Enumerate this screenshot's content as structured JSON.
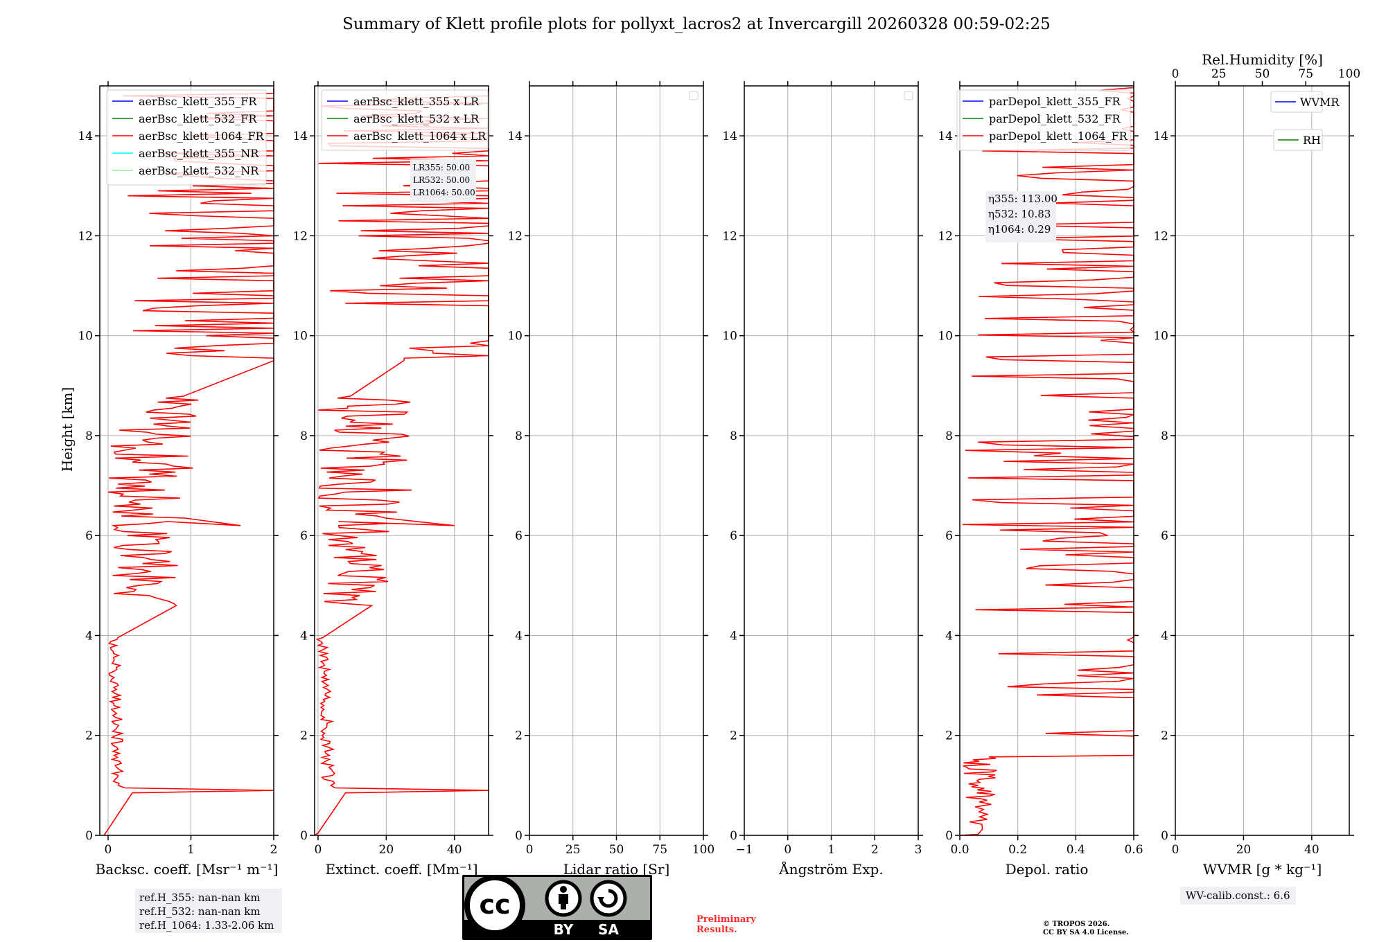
{
  "title": "Summary of Klett profile plots for pollyxt_lacros2 at Invercargill 20260328 00:59-02:25",
  "colors": {
    "c355": "#0000ff",
    "c532": "#008000",
    "c1064": "#ff0000",
    "c355nr": "#00ffff",
    "c532nr": "#90ee90",
    "grid": "#b0b0b0"
  },
  "chart_data": [
    {
      "type": "line",
      "name": "backscatter",
      "xlabel": "Backsc. coeff. [Msr⁻¹ m⁻¹]",
      "ylabel": "Height [km]",
      "xlim": [
        -0.1,
        2
      ],
      "ylim": [
        0,
        15
      ],
      "xticks": [
        0,
        1,
        2
      ],
      "yticks": [
        0,
        2,
        4,
        6,
        8,
        10,
        12,
        14
      ],
      "legend": [
        "aerBsc_klett_355_FR",
        "aerBsc_klett_532_FR",
        "aerBsc_klett_1064_FR",
        "aerBsc_klett_355_NR",
        "aerBsc_klett_532_NR"
      ],
      "legend_placement": "top-right",
      "series": [
        {
          "name": "aerBsc_klett_1064_FR",
          "color": "#ff0000"
        }
      ]
    },
    {
      "type": "line",
      "name": "extinction",
      "xlabel": "Extinct. coeff. [Mm⁻¹]",
      "xlim": [
        -1,
        50
      ],
      "ylim": [
        0,
        15
      ],
      "xticks": [
        0,
        20,
        40
      ],
      "yticks": [
        0,
        2,
        4,
        6,
        8,
        10,
        12,
        14
      ],
      "legend": [
        "aerBsc_klett_355 x LR",
        "aerBsc_klett_532 x LR",
        "aerBsc_klett_1064 x LR"
      ],
      "legend_placement": "top-right",
      "annotation": [
        "LR355: 50.00",
        "LR532: 50.00",
        "LR1064: 50.00"
      ],
      "series": [
        {
          "name": "aerBsc_klett_1064 x LR",
          "color": "#ff0000"
        }
      ]
    },
    {
      "type": "line",
      "name": "lidar_ratio",
      "xlabel": "Lidar ratio [Sr]",
      "xlim": [
        0,
        100
      ],
      "ylim": [
        0,
        15
      ],
      "xticks": [
        0,
        25,
        50,
        75,
        100
      ],
      "yticks": [
        0,
        2,
        4,
        6,
        8,
        10,
        12,
        14
      ],
      "series": []
    },
    {
      "type": "line",
      "name": "angstrom",
      "xlabel": "Ångström Exp.",
      "xlim": [
        -1,
        3
      ],
      "ylim": [
        0,
        15
      ],
      "xticks": [
        -1,
        0,
        1,
        2,
        3
      ],
      "yticks": [
        0,
        2,
        4,
        6,
        8,
        10,
        12,
        14
      ],
      "series": []
    },
    {
      "type": "line",
      "name": "depol",
      "xlabel": "Depol. ratio",
      "xlim": [
        0,
        0.6
      ],
      "ylim": [
        0,
        15
      ],
      "xticks": [
        0.0,
        0.2,
        0.4,
        0.6
      ],
      "xticklabels": [
        "0.0",
        "0.2",
        "0.4",
        "0.6"
      ],
      "yticks": [
        0,
        2,
        4,
        6,
        8,
        10,
        12,
        14
      ],
      "legend": [
        "parDepol_klett_355_FR",
        "parDepol_klett_532_FR",
        "parDepol_klett_1064_FR"
      ],
      "legend_placement": "top-left",
      "annotation": [
        "η355: 113.00",
        "η532: 10.83",
        "η1064: 0.29"
      ],
      "series": [
        {
          "name": "parDepol_klett_1064_FR",
          "color": "#ff0000"
        }
      ]
    },
    {
      "type": "line",
      "name": "wvmr",
      "xlabel": "WVMR [g * kg⁻¹]",
      "xlim": [
        0,
        51
      ],
      "ylim": [
        0,
        15
      ],
      "xticks": [
        0,
        20,
        40
      ],
      "yticks": [
        0,
        2,
        4,
        6,
        8,
        10,
        12,
        14
      ],
      "x2label": "Rel.Humidity [%]",
      "x2lim": [
        0,
        100
      ],
      "x2ticks": [
        0,
        25,
        50,
        75,
        100
      ],
      "legend": [
        "WVMR",
        "RH"
      ],
      "series": []
    }
  ],
  "ref_heights": [
    "ref.H_355: nan-nan km",
    "ref.H_532: nan-nan km",
    "ref.H_1064: 1.33-2.06 km"
  ],
  "wv_calib": "WV-calib.const.: 6.6",
  "cc_badge": {
    "by": "BY",
    "sa": "SA",
    "cc": "cc"
  },
  "preliminary": [
    "Preliminary",
    "Results."
  ],
  "copyright": [
    "© TROPOS 2026.",
    "CC BY SA 4.0 License."
  ]
}
